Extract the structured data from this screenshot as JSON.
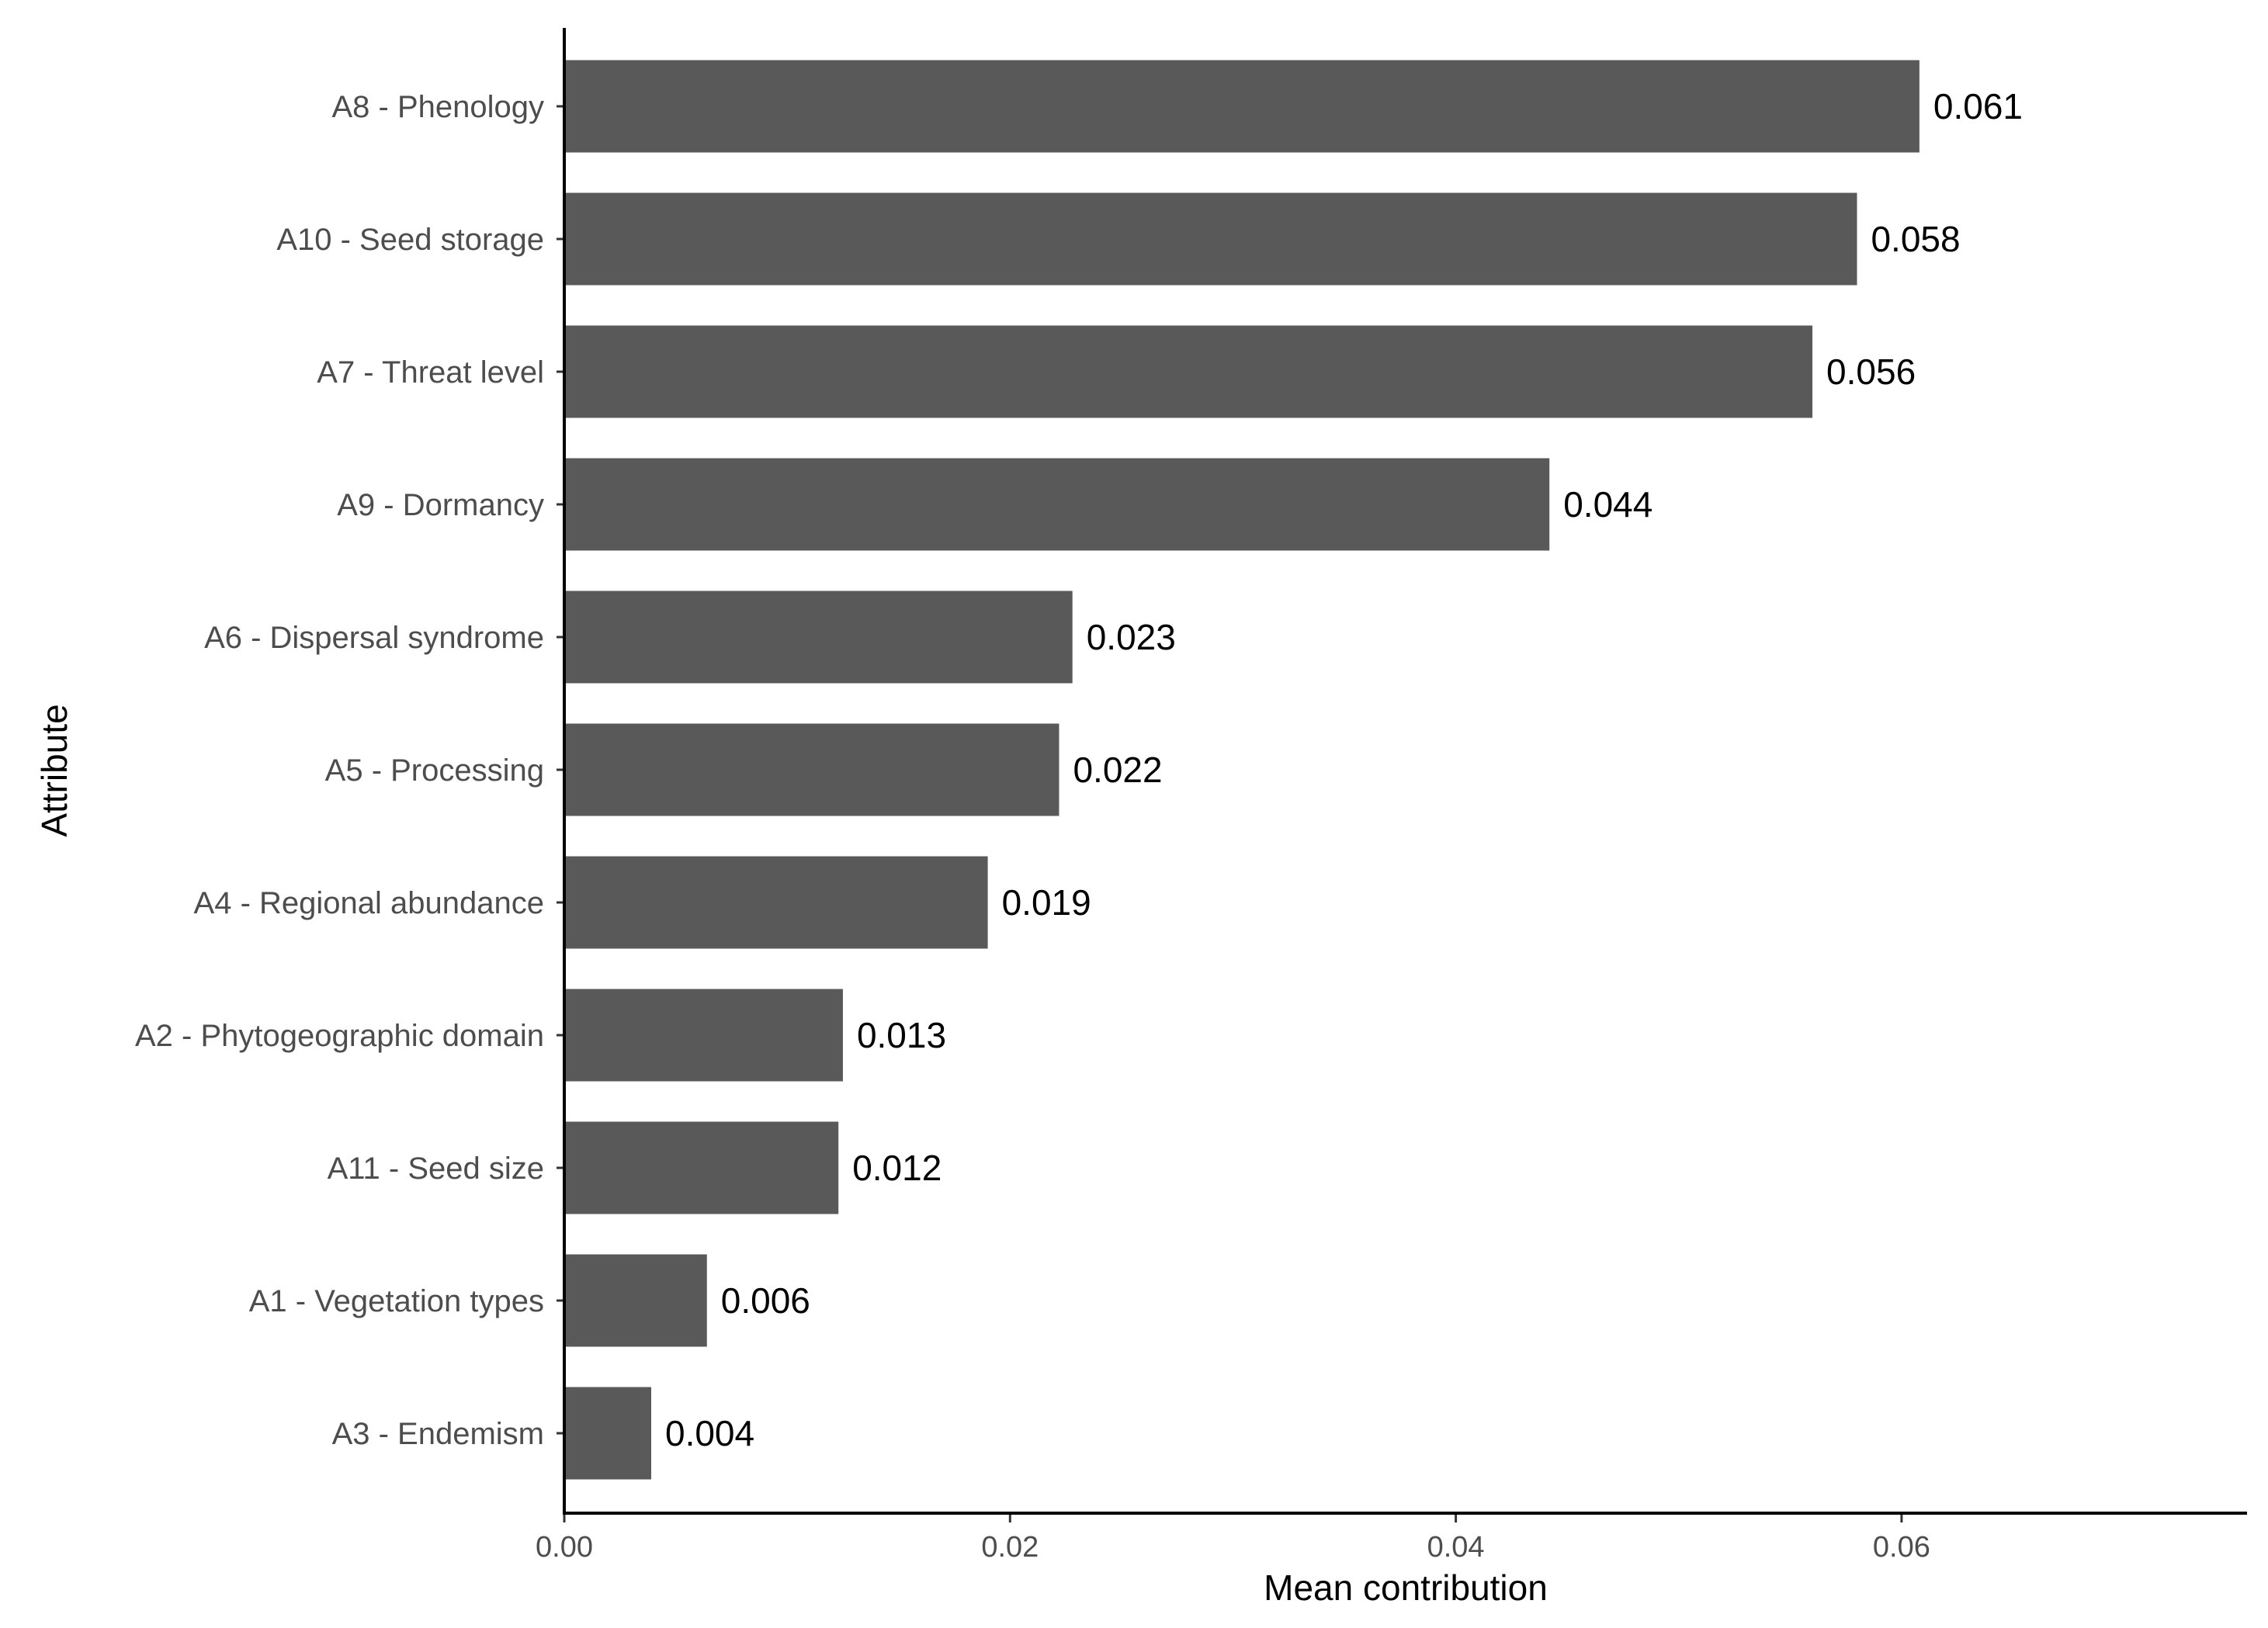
{
  "chart_data": {
    "type": "bar",
    "orientation": "horizontal",
    "xlabel": "Mean contribution",
    "ylabel": "Attribute",
    "xlim": [
      0,
      0.0755
    ],
    "xticks": [
      0,
      0.02,
      0.04,
      0.06
    ],
    "xtick_labels": [
      "0.00",
      "0.02",
      "0.04",
      "0.06"
    ],
    "grid": false,
    "bar_color": "#595959",
    "categories": [
      "A8 - Phenology",
      "A10 - Seed storage",
      "A7 - Threat level",
      "A9 - Dormancy",
      "A6 - Dispersal syndrome",
      "A5 - Processing",
      "A4 - Regional abundance",
      "A2 - Phytogeographic domain",
      "A11 - Seed size",
      "A1 - Vegetation types",
      "A3 - Endemism"
    ],
    "values": [
      0.0608,
      0.058,
      0.056,
      0.0442,
      0.0228,
      0.0222,
      0.019,
      0.0125,
      0.0123,
      0.0064,
      0.0039
    ],
    "value_labels": [
      "0.061",
      "0.058",
      "0.056",
      "0.044",
      "0.023",
      "0.022",
      "0.019",
      "0.013",
      "0.012",
      "0.006",
      "0.004"
    ]
  }
}
